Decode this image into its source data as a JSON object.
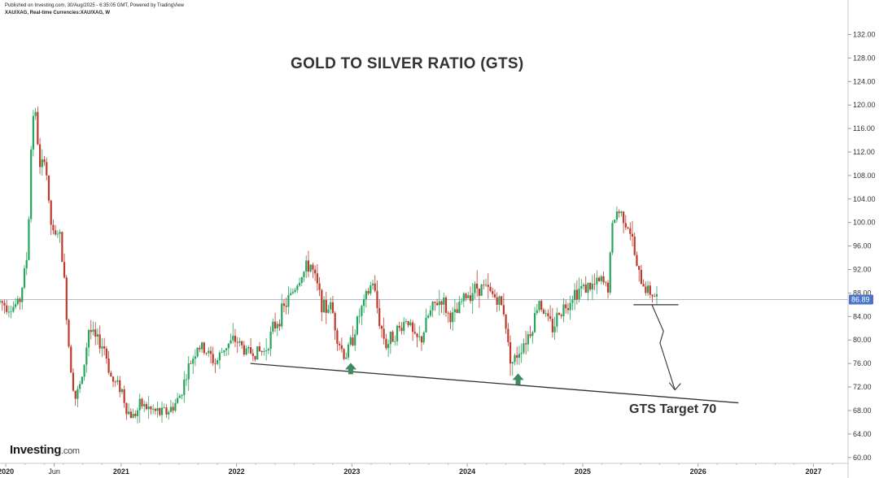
{
  "header": {
    "published": "Published on Investing.com, 30/Aug/2025 - 6:35:05 GMT, Powered by TradingView",
    "symbol": "XAU/XAG, Real-time Currencies:XAU/XAG, W"
  },
  "logo": {
    "brand": "Investing",
    "suffix": ".com"
  },
  "colors": {
    "up": "#26a65b",
    "down": "#c0392b",
    "price_tag": "#4a74c9",
    "arrow": "#3d8b5e",
    "line": "#333333"
  },
  "chart_data": {
    "type": "candlestick",
    "title": "GOLD TO SILVER RATIO (GTS)",
    "annotation": "GTS Target 70",
    "current_price": "86.89",
    "current_price_value": 86.89,
    "ylim": [
      59,
      134
    ],
    "y_ticks": [
      60,
      64,
      68,
      72,
      76,
      80,
      84,
      88,
      92,
      96,
      100,
      104,
      108,
      112,
      116,
      120,
      124,
      128,
      132
    ],
    "y_tick_labels": [
      "60.00",
      "64.00",
      "68.00",
      "72.00",
      "76.00",
      "80.00",
      "84.00",
      "88.00",
      "92.00",
      "96.00",
      "100.00",
      "104.00",
      "108.00",
      "112.00",
      "116.00",
      "120.00",
      "124.00",
      "128.00",
      "132.00"
    ],
    "xlim": [
      2019.95,
      2027.3
    ],
    "x_ticks": [
      {
        "t": 2020.0,
        "label": "2020",
        "major": true
      },
      {
        "t": 2020.42,
        "label": "Jun",
        "major": false
      },
      {
        "t": 2021.0,
        "label": "2021",
        "major": true
      },
      {
        "t": 2022.0,
        "label": "2022",
        "major": true
      },
      {
        "t": 2023.0,
        "label": "2023",
        "major": true
      },
      {
        "t": 2024.0,
        "label": "2024",
        "major": true
      },
      {
        "t": 2025.0,
        "label": "2025",
        "major": true
      },
      {
        "t": 2026.0,
        "label": "2026",
        "major": true
      },
      {
        "t": 2027.0,
        "label": "2027",
        "major": true
      }
    ],
    "price_path": [
      [
        2019.95,
        86.5
      ],
      [
        2020.05,
        85.5
      ],
      [
        2020.12,
        86.5
      ],
      [
        2020.19,
        95
      ],
      [
        2020.23,
        119
      ],
      [
        2020.26,
        118
      ],
      [
        2020.3,
        108
      ],
      [
        2020.34,
        112
      ],
      [
        2020.38,
        101
      ],
      [
        2020.42,
        97
      ],
      [
        2020.46,
        99
      ],
      [
        2020.5,
        92
      ],
      [
        2020.55,
        78
      ],
      [
        2020.6,
        70
      ],
      [
        2020.66,
        73
      ],
      [
        2020.72,
        82
      ],
      [
        2020.78,
        80
      ],
      [
        2020.85,
        79
      ],
      [
        2020.92,
        73
      ],
      [
        2021.0,
        72
      ],
      [
        2021.05,
        68
      ],
      [
        2021.1,
        67
      ],
      [
        2021.18,
        69
      ],
      [
        2021.26,
        68
      ],
      [
        2021.34,
        67.5
      ],
      [
        2021.42,
        68
      ],
      [
        2021.5,
        70
      ],
      [
        2021.58,
        75
      ],
      [
        2021.66,
        79
      ],
      [
        2021.74,
        78
      ],
      [
        2021.82,
        76
      ],
      [
        2021.9,
        79
      ],
      [
        2022.0,
        80
      ],
      [
        2022.08,
        78
      ],
      [
        2022.16,
        78
      ],
      [
        2022.24,
        78
      ],
      [
        2022.32,
        82
      ],
      [
        2022.4,
        85
      ],
      [
        2022.48,
        88
      ],
      [
        2022.56,
        91
      ],
      [
        2022.64,
        93
      ],
      [
        2022.7,
        89
      ],
      [
        2022.76,
        85
      ],
      [
        2022.82,
        86
      ],
      [
        2022.88,
        80
      ],
      [
        2022.94,
        77
      ],
      [
        2023.0,
        80
      ],
      [
        2023.06,
        84
      ],
      [
        2023.12,
        87
      ],
      [
        2023.18,
        90
      ],
      [
        2023.24,
        83
      ],
      [
        2023.3,
        79
      ],
      [
        2023.36,
        81
      ],
      [
        2023.42,
        82
      ],
      [
        2023.48,
        84
      ],
      [
        2023.54,
        80
      ],
      [
        2023.6,
        80
      ],
      [
        2023.66,
        84
      ],
      [
        2023.72,
        86
      ],
      [
        2023.78,
        87
      ],
      [
        2023.84,
        84
      ],
      [
        2023.9,
        84
      ],
      [
        2023.96,
        87
      ],
      [
        2024.02,
        88
      ],
      [
        2024.08,
        89
      ],
      [
        2024.14,
        89
      ],
      [
        2024.2,
        88
      ],
      [
        2024.26,
        87
      ],
      [
        2024.32,
        85
      ],
      [
        2024.36,
        78
      ],
      [
        2024.4,
        76
      ],
      [
        2024.44,
        78
      ],
      [
        2024.5,
        80
      ],
      [
        2024.56,
        82
      ],
      [
        2024.62,
        87
      ],
      [
        2024.68,
        84
      ],
      [
        2024.74,
        82
      ],
      [
        2024.8,
        85
      ],
      [
        2024.86,
        86
      ],
      [
        2024.92,
        88
      ],
      [
        2025.0,
        89
      ],
      [
        2025.08,
        89
      ],
      [
        2025.16,
        90
      ],
      [
        2025.22,
        89
      ],
      [
        2025.26,
        100
      ],
      [
        2025.3,
        102
      ],
      [
        2025.36,
        101
      ],
      [
        2025.42,
        98
      ],
      [
        2025.48,
        91
      ],
      [
        2025.54,
        89
      ],
      [
        2025.6,
        88
      ],
      [
        2025.66,
        86.89
      ]
    ],
    "annotations": {
      "support_line": [
        [
          2022.12,
          76
        ],
        [
          2026.35,
          69.3
        ]
      ],
      "resistance_line": [
        [
          2025.44,
          86.0
        ],
        [
          2025.83,
          86.0
        ]
      ],
      "projection_path": [
        [
          2025.6,
          86.0
        ],
        [
          2025.7,
          81.5
        ],
        [
          2025.67,
          79.5
        ],
        [
          2025.8,
          71.5
        ]
      ],
      "up_arrows": [
        [
          2022.99,
          75.0
        ],
        [
          2024.44,
          73.2
        ]
      ]
    }
  }
}
